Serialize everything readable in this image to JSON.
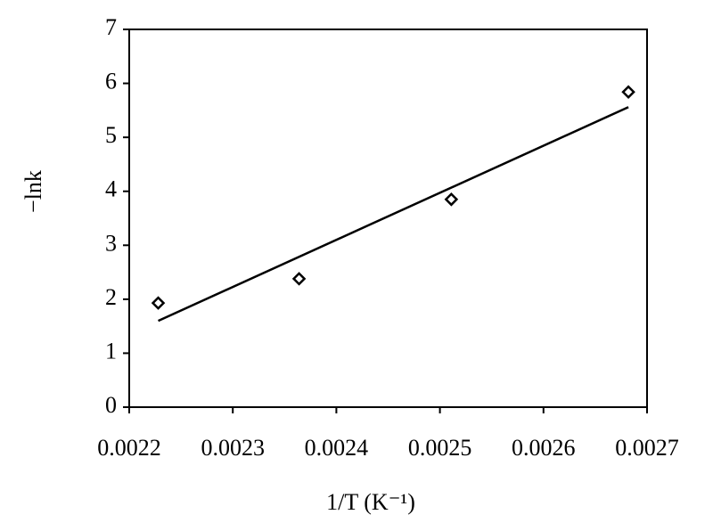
{
  "chart_data": {
    "type": "scatter",
    "x_label": "1/T (K⁻¹)",
    "y_label": "−lnk",
    "series": [
      {
        "color": "#000000",
        "x": [
          0.002228,
          0.002364,
          0.002511,
          0.002682
        ],
        "values": [
          1.93,
          2.38,
          3.85,
          5.84
        ]
      }
    ],
    "trendline": {
      "x": [
        0.002228,
        0.002682
      ],
      "values": [
        1.6,
        5.56
      ],
      "color": "#000000"
    },
    "xlim": [
      0.0022,
      0.0027
    ],
    "xticks": [
      0.0022,
      0.0023,
      0.0024,
      0.0025,
      0.0026,
      0.0027
    ],
    "ylim": [
      0,
      7
    ],
    "yticks": [
      0,
      1,
      2,
      3,
      4,
      5,
      6,
      7
    ]
  }
}
